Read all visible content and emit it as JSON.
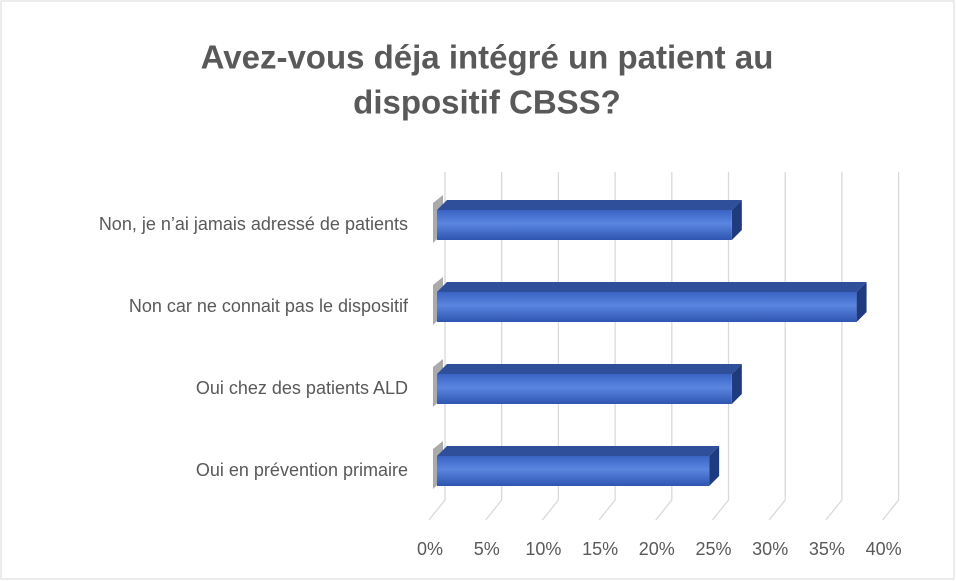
{
  "chart_data": {
    "type": "bar3d",
    "title": [
      "Avez-vous déja intégré un patient au",
      "dispositif CBSS?"
    ],
    "categories": [
      "Non, je n’ai jamais adressé de patients",
      "Non car ne connait pas le dispositif",
      "Oui chez des patients ALD",
      "Oui en prévention primaire"
    ],
    "values": [
      26,
      37,
      26,
      24
    ],
    "color": "#4472c4",
    "xlim": [
      0,
      40
    ],
    "xticks": [
      {
        "value": 0,
        "label": "0%"
      },
      {
        "value": 5,
        "label": "5%"
      },
      {
        "value": 10,
        "label": "10%"
      },
      {
        "value": 15,
        "label": "15%"
      },
      {
        "value": 20,
        "label": "20%"
      },
      {
        "value": 25,
        "label": "25%"
      },
      {
        "value": 30,
        "label": "30%"
      },
      {
        "value": 35,
        "label": "35%"
      },
      {
        "value": 40,
        "label": "40%"
      }
    ],
    "grid": true
  }
}
